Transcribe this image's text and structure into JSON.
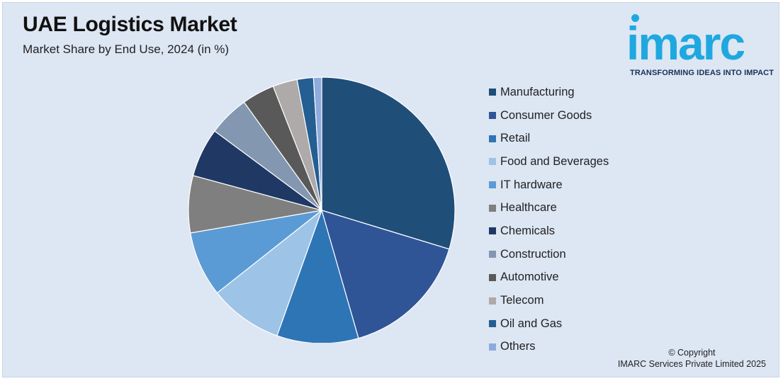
{
  "header": {
    "title": "UAE Logistics Market",
    "subtitle": "Market Share by End Use, 2024 (in %)"
  },
  "logo": {
    "wordmark": "imarc",
    "tagline": "TRANSFORMING IDEAS INTO IMPACT",
    "color": "#1fa8e0"
  },
  "chart_data": {
    "type": "pie",
    "title": "UAE Logistics Market",
    "subtitle": "Market Share by End Use, 2024 (in %)",
    "legend_placement": "right",
    "slices": [
      {
        "label": "Manufacturing",
        "value": 30,
        "color": "#1f4e79"
      },
      {
        "label": "Consumer Goods",
        "value": 16,
        "color": "#2f5597"
      },
      {
        "label": "Retail",
        "value": 10,
        "color": "#2e75b6"
      },
      {
        "label": "Food and Beverages",
        "value": 9,
        "color": "#9dc3e6"
      },
      {
        "label": "IT hardware",
        "value": 8,
        "color": "#5b9bd5"
      },
      {
        "label": "Healthcare",
        "value": 7,
        "color": "#7f7f7f"
      },
      {
        "label": "Chemicals",
        "value": 6,
        "color": "#203864"
      },
      {
        "label": "Construction",
        "value": 5,
        "color": "#8497b0"
      },
      {
        "label": "Automotive",
        "value": 4,
        "color": "#595959"
      },
      {
        "label": "Telecom",
        "value": 3,
        "color": "#aeaaaa"
      },
      {
        "label": "Oil and Gas",
        "value": 2,
        "color": "#255e91"
      },
      {
        "label": "Others",
        "value": 1,
        "color": "#8faadc"
      }
    ]
  },
  "footer": {
    "copyright_line1": "© Copyright",
    "copyright_line2": "IMARC Services Private Limited 2025"
  }
}
